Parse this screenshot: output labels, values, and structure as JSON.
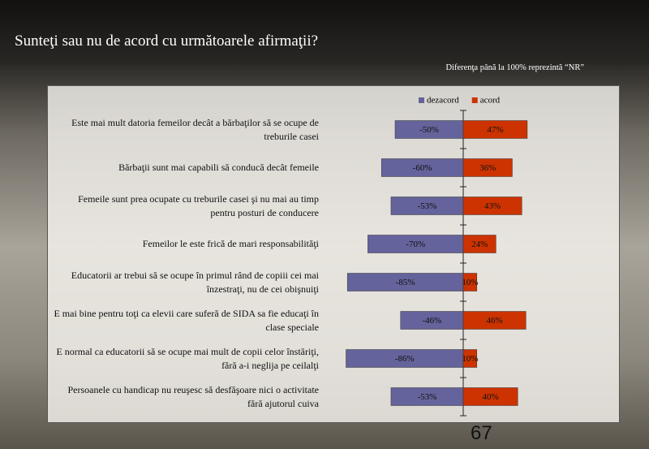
{
  "chart_data": {
    "type": "bar",
    "orientation": "horizontal",
    "stacked": false,
    "title": "Sunteţi sau nu de acord cu următoarele afirmaţii?",
    "subtitle": "Diferenţa până la 100% reprezintă  “NR”",
    "categories": [
      "Este mai mult datoria femeilor decât a bărbaţilor să se ocupe de treburile casei",
      "Bărbaţii sunt mai capabili să conducă decât femeile",
      "Femeile sunt prea ocupate cu treburile casei şi nu mai au timp pentru posturi de conducere",
      "Femeilor le este frică de mari responsabilităţi",
      "Educatorii ar trebui să se ocupe în primul rând de copiii cei mai înzestraţi, nu de cei obişnuiţi",
      "E mai bine pentru toţi ca elevii care suferă de SIDA sa fie educaţi în clase speciale",
      "E normal ca educatorii să se ocupe mai mult de copii celor înstăriţi, fără a-i neglija pe ceilalţi",
      "Persoanele cu handicap nu reuşesc să desfăşoare nici o activitate fără ajutorul cuiva"
    ],
    "series": [
      {
        "name": "dezacord",
        "color": "#64639b",
        "values": [
          -50,
          -60,
          -53,
          -70,
          -85,
          -46,
          -86,
          -53
        ],
        "value_labels": [
          "-50%",
          "-60%",
          "-53%",
          "-70%",
          "-85%",
          "-46%",
          "-86%",
          "-53%"
        ]
      },
      {
        "name": "acord",
        "color": "#cc3300",
        "values": [
          47,
          36,
          43,
          24,
          10,
          46,
          10,
          40
        ],
        "value_labels": [
          "47%",
          "36%",
          "43%",
          "24%",
          "10%",
          "46%",
          "10%",
          "40%"
        ]
      }
    ],
    "xlim": [
      -100,
      100
    ],
    "legend": "top"
  },
  "page_number": "67"
}
